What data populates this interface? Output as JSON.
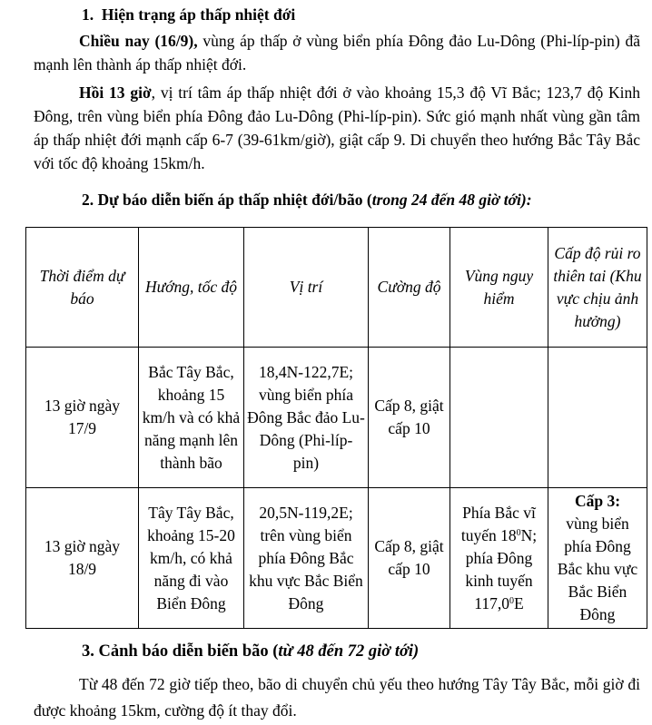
{
  "section1": {
    "heading_num": "1.",
    "heading": "Hiện trạng áp thấp nhiệt đới",
    "p1_bold": "Chiều nay (16/9),",
    "p1_text": " vùng áp thấp ở vùng biển phía Đông đảo Lu-Dông (Phi-líp-pin) đã mạnh lên thành áp thấp nhiệt đới.",
    "p2_bold": "Hồi 13 giờ",
    "p2_text": ", vị trí tâm áp thấp nhiệt đới ở vào khoảng 15,3 độ Vĩ Bắc; 123,7 độ Kinh Đông, trên vùng biển phía Đông đảo Lu-Dông (Phi-líp-pin). Sức gió mạnh nhất vùng gần tâm áp thấp nhiệt đới mạnh cấp 6-7 (39-61km/giờ), giật cấp 9. Di chuyển theo hướng Bắc Tây Bắc với tốc độ khoảng 15km/h."
  },
  "section2": {
    "heading": "2. Dự báo diễn biến áp thấp nhiệt đới/bão (",
    "heading_italic": "trong 24 đến 48 giờ tới):",
    "table": {
      "headers": [
        "Thời điểm dự báo",
        "Hướng, tốc độ",
        "Vị trí",
        "Cường độ",
        "Vùng nguy hiểm",
        "Cấp độ rủi ro thiên tai (Khu vực chịu ảnh hưởng)"
      ],
      "rows": [
        {
          "time": "13 giờ ngày 17/9",
          "direction": "Bắc Tây Bắc, khoảng 15 km/h và có khả năng mạnh lên thành bão",
          "position": "18,4N-122,7E; vùng biển phía Đông Bắc đảo Lu-Dông (Phi-líp-pin)",
          "intensity": "Cấp 8, giật cấp 10",
          "danger_zone": "",
          "risk_bold": "",
          "risk_text": ""
        },
        {
          "time": "13 giờ ngày 18/9",
          "direction": "Tây Tây Bắc, khoảng 15-20 km/h, có khả năng đi vào Biển Đông",
          "position": "20,5N-119,2E; trên vùng biển phía Đông Bắc khu vực Bắc Biển Đông",
          "intensity": "Cấp 8, giật cấp 10",
          "danger_a": "Phía Bắc vĩ tuyến 18",
          "danger_sup1": "0",
          "danger_b": "N; phía Đông kinh tuyến 117,0",
          "danger_sup2": "0",
          "danger_c": "E",
          "risk_bold": "Cấp 3:",
          "risk_text": "vùng biển phía Đông Bắc khu vực Bắc Biển Đông"
        }
      ]
    }
  },
  "section3": {
    "heading": "3. Cảnh báo diễn biến bão (",
    "heading_italic": "từ 48 đến 72 giờ tới)",
    "paragraph": "Từ 48 đến 72 giờ tiếp theo, bão di chuyển chủ yếu theo hướng Tây Tây Bắc, mỗi giờ đi được khoảng 15km, cường độ ít thay đổi."
  }
}
